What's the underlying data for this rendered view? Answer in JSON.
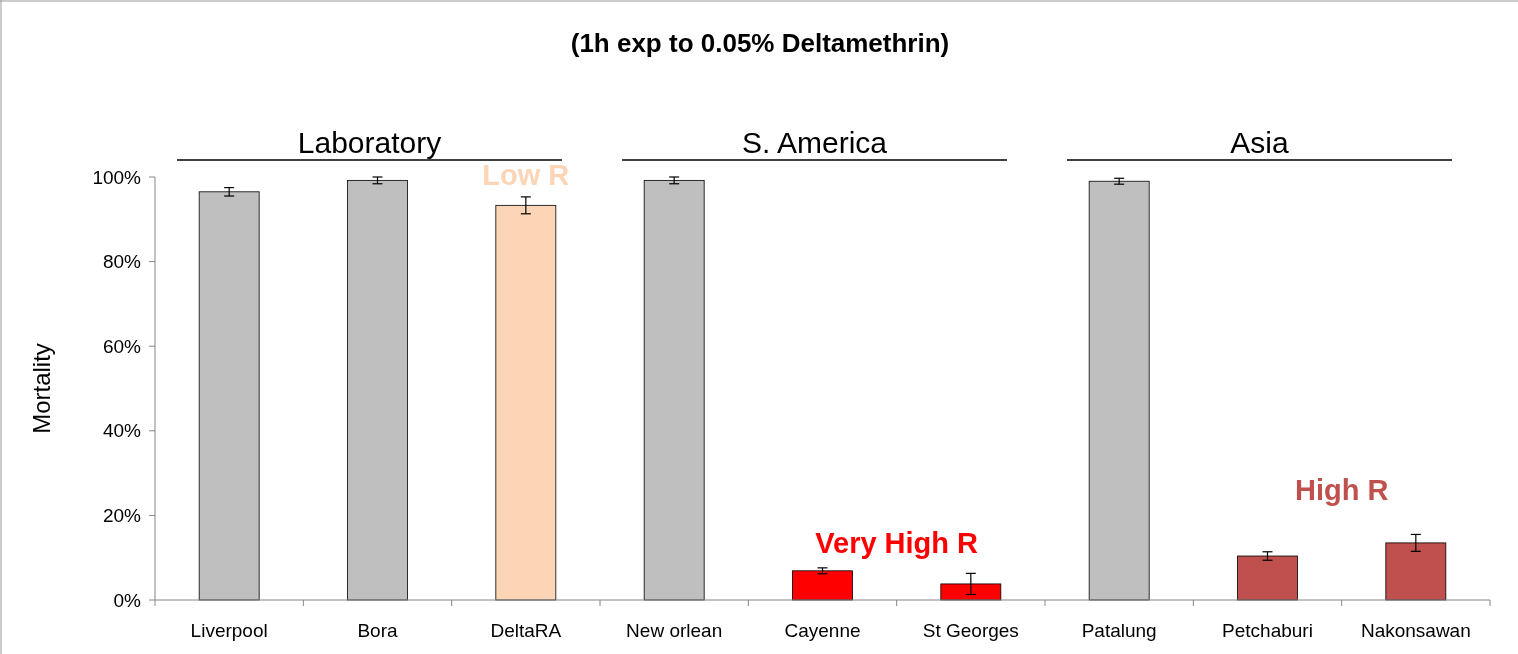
{
  "chart_data": {
    "type": "bar",
    "title": "(1h exp to 0.05% Deltamethrin)",
    "ylabel": "Mortality",
    "categories": [
      "Liverpool",
      "Bora",
      "DeltaRA",
      "New orlean",
      "Cayenne",
      "St Georges",
      "Patalung",
      "Petchaburi",
      "Nakonsawan"
    ],
    "values": [
      96.5,
      99.2,
      93.3,
      99.2,
      6.9,
      3.8,
      99,
      10.4,
      13.5
    ],
    "errors": [
      1,
      0.8,
      2,
      0.8,
      0.7,
      2.5,
      0.7,
      1,
      2
    ],
    "colors": [
      "#bfbfbf",
      "#bfbfbf",
      "#fbd5b5",
      "#bfbfbf",
      "#ff0000",
      "#ff0000",
      "#bfbfbf",
      "#c0504d",
      "#c0504d"
    ],
    "ylim": [
      0,
      100
    ],
    "yticks": [
      {
        "value": 0,
        "label": "0%"
      },
      {
        "value": 20,
        "label": "20%"
      },
      {
        "value": 40,
        "label": "40%"
      },
      {
        "value": 60,
        "label": "60%"
      },
      {
        "value": 80,
        "label": "80%"
      },
      {
        "value": 100,
        "label": "100%"
      }
    ],
    "grid": false,
    "annotations": [
      "Laboratory",
      "S. America",
      "Asia",
      "Low R",
      "Very High R",
      "High R"
    ]
  }
}
